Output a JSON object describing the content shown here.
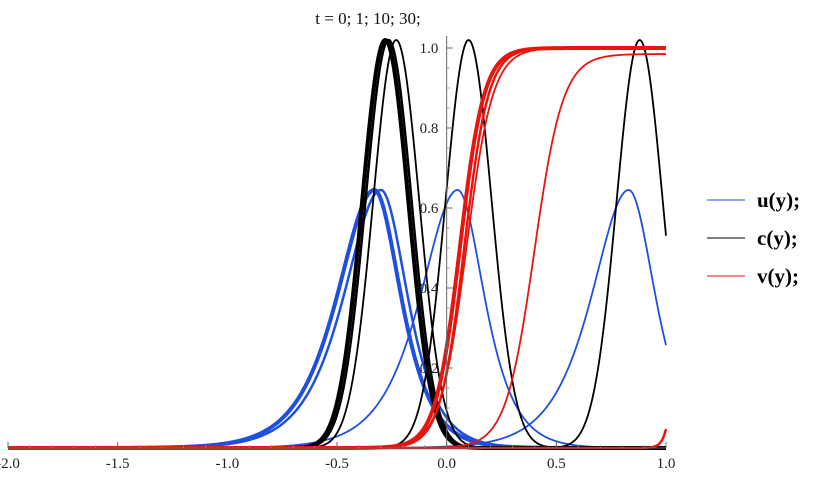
{
  "chart_data": {
    "type": "line",
    "title": "t = 0; 1; 10; 30;",
    "xlabel": "",
    "ylabel": "",
    "xlim": [
      -2.0,
      1.0
    ],
    "ylim": [
      0,
      1.05
    ],
    "x_ticks": [
      -2.0,
      -1.5,
      -1.0,
      -0.5,
      0.0,
      0.5,
      1.0
    ],
    "x_tick_labels": [
      "-2.0",
      "-1.5",
      "-1.0",
      "-0.5",
      "0.0",
      "0.5",
      "1.0"
    ],
    "y_ticks": [
      0.2,
      0.4,
      0.6,
      0.8,
      1.0
    ],
    "y_tick_labels": [
      "0.2",
      "0.4",
      "0.6",
      "0.8",
      "1.0"
    ],
    "grid": false,
    "legend_position": "right",
    "legend": [
      {
        "label": "u(y);",
        "color": "#1f4fe0"
      },
      {
        "label": "c(y);",
        "color": "#000000"
      },
      {
        "label": "v(y);",
        "color": "#e8150f"
      }
    ],
    "series": [
      {
        "group": "u",
        "color": "#1f4fe0",
        "width": 4,
        "kind": "bump",
        "center": -0.33,
        "peak": 0.645,
        "left_width": 0.25,
        "right_width": 0.18
      },
      {
        "group": "u",
        "color": "#1f4fe0",
        "width": 2.5,
        "kind": "bump",
        "center": -0.3,
        "peak": 0.645,
        "left_width": 0.25,
        "right_width": 0.18
      },
      {
        "group": "u",
        "color": "#1f4fe0",
        "width": 1.8,
        "kind": "bump",
        "center": 0.05,
        "peak": 0.645,
        "left_width": 0.25,
        "right_width": 0.18
      },
      {
        "group": "u",
        "color": "#1f4fe0",
        "width": 1.8,
        "kind": "bump",
        "center": 0.83,
        "peak": 0.645,
        "left_width": 0.25,
        "right_width": 0.18
      },
      {
        "group": "c",
        "color": "#000000",
        "width": 4,
        "kind": "gauss",
        "center": -0.28,
        "peak": 1.02,
        "sigma": 0.105
      },
      {
        "group": "c",
        "color": "#000000",
        "width": 2.5,
        "kind": "gauss",
        "center": -0.265,
        "peak": 1.02,
        "sigma": 0.105
      },
      {
        "group": "c",
        "color": "#000000",
        "width": 1.8,
        "kind": "gauss",
        "center": -0.23,
        "peak": 1.02,
        "sigma": 0.105
      },
      {
        "group": "c",
        "color": "#000000",
        "width": 1.8,
        "kind": "gauss",
        "center": 0.1,
        "peak": 1.02,
        "sigma": 0.105
      },
      {
        "group": "c",
        "color": "#000000",
        "width": 1.8,
        "kind": "gauss",
        "center": 0.88,
        "peak": 1.02,
        "sigma": 0.105
      },
      {
        "group": "v",
        "color": "#e8150f",
        "width": 4,
        "kind": "sigmoid",
        "center": 0.06,
        "scale": 0.055,
        "top": 1.0
      },
      {
        "group": "v",
        "color": "#e8150f",
        "width": 2.5,
        "kind": "sigmoid",
        "center": 0.08,
        "scale": 0.055,
        "top": 1.0
      },
      {
        "group": "v",
        "color": "#e8150f",
        "width": 1.8,
        "kind": "sigmoid",
        "center": 0.09,
        "scale": 0.06,
        "top": 1.0
      },
      {
        "group": "v",
        "color": "#e8150f",
        "width": 1.8,
        "kind": "sigmoid",
        "center": 0.4,
        "scale": 0.065,
        "top": 0.985
      },
      {
        "group": "v",
        "color": "#e8150f",
        "width": 2.5,
        "kind": "sigmoid",
        "center": 1.06,
        "scale": 0.02,
        "top": 1.0
      }
    ]
  }
}
